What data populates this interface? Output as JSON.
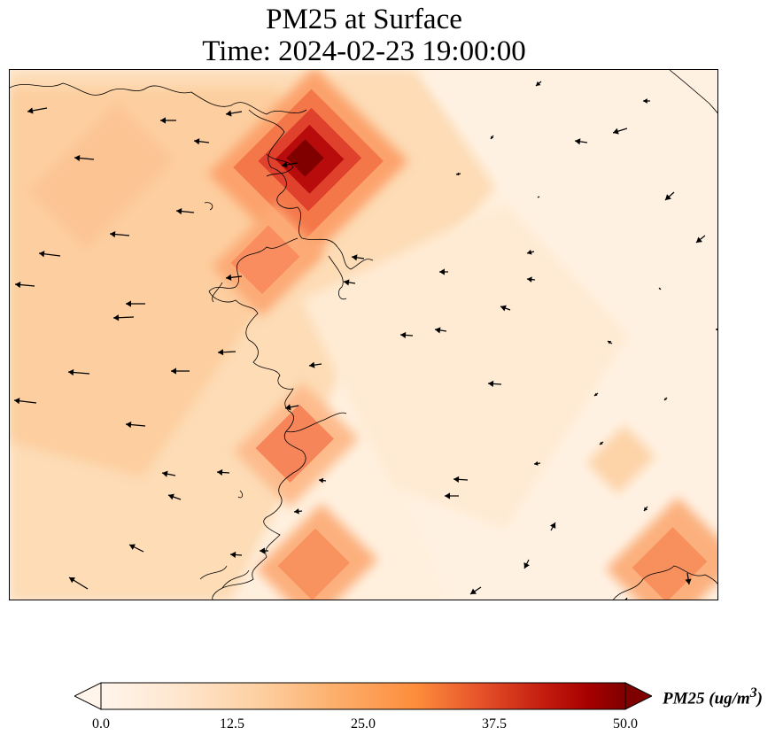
{
  "title": {
    "line1": "PM25 at Surface",
    "line2": "Time: 2024-02-23 19:00:00"
  },
  "colorbar": {
    "label": "PM25 (ug/m",
    "label_exp": "3",
    "label_close": ")",
    "ticks": [
      "0.0",
      "12.5",
      "25.0",
      "37.5",
      "50.0"
    ],
    "min": 0,
    "max": 50,
    "extend": "both",
    "colormap": [
      "#fff5eb",
      "#fee6ce",
      "#fdd0a2",
      "#fdae6b",
      "#fd8d3c",
      "#f16913",
      "#d94801",
      "#a60000",
      "#7f0000"
    ]
  },
  "map": {
    "field": "PM25",
    "level": "Surface",
    "units": "ug/m3",
    "hotspots_ug_m3": [
      {
        "area": "upper-center coast",
        "peak": 48
      },
      {
        "area": "middle coast",
        "peak": 27
      },
      {
        "area": "center-lower coast",
        "peak": 28
      },
      {
        "area": "lower coast",
        "peak": 24
      },
      {
        "area": "bottom-right corner",
        "peak": 23
      }
    ],
    "background_range_ug_m3": [
      2,
      12
    ],
    "wind_vectors": "dominant easterly flow (arrows pointing west) over the western half, light and variable winds in the east"
  }
}
